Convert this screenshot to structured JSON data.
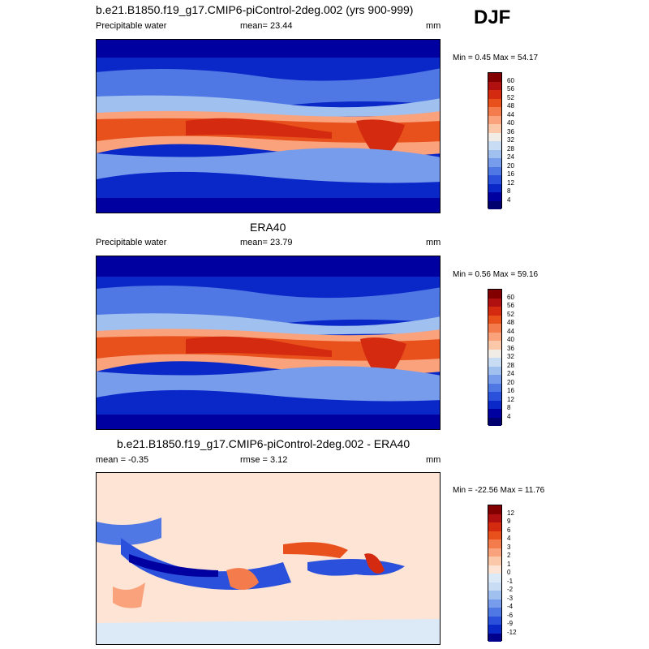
{
  "season": "DJF",
  "panels": [
    {
      "title": "b.e21.B1850.f19_g17.CMIP6-piControl-2deg.002 (yrs 900-999)",
      "left": "Precipitable water",
      "center": "mean=  23.44",
      "right": "mm",
      "minmax": "Min =  0.45 Max =  54.17",
      "cbar_labels": [
        "60",
        "56",
        "52",
        "48",
        "44",
        "40",
        "36",
        "32",
        "28",
        "24",
        "20",
        "16",
        "12",
        "8",
        "4"
      ]
    },
    {
      "title": "ERA40",
      "left": "Precipitable water",
      "center": "mean=  23.79",
      "right": "mm",
      "minmax": "Min =  0.56 Max =  59.16",
      "cbar_labels": [
        "60",
        "56",
        "52",
        "48",
        "44",
        "40",
        "36",
        "32",
        "28",
        "24",
        "20",
        "16",
        "12",
        "8",
        "4"
      ]
    },
    {
      "title": "b.e21.B1850.f19_g17.CMIP6-piControl-2deg.002 - ERA40",
      "left": "mean =  -0.35",
      "center": "rmse =   3.12",
      "right": "mm",
      "minmax": "Min = -22.56 Max =  11.76",
      "cbar_labels": [
        "12",
        "9",
        "6",
        "4",
        "3",
        "2",
        "1",
        "0",
        "-1",
        "-2",
        "-3",
        "-4",
        "-6",
        "-9",
        "-12"
      ]
    }
  ],
  "colors": {
    "field": [
      "#820000",
      "#b01010",
      "#d42a10",
      "#e8501c",
      "#f47c4c",
      "#f9a27c",
      "#fcc8aa",
      "#f2ece6",
      "#c8dcf4",
      "#a0c0f0",
      "#789cec",
      "#5078e4",
      "#2a50dc",
      "#0a28c8",
      "#0000a0",
      "#00006e"
    ],
    "diff": [
      "#820000",
      "#b01010",
      "#d42a10",
      "#e8501c",
      "#f47c4c",
      "#f9a27c",
      "#fcc8aa",
      "#fde4d4",
      "#dceaf8",
      "#c8dcf4",
      "#a0c0f0",
      "#789cec",
      "#5078e4",
      "#2a50dc",
      "#0a28c8",
      "#00008c"
    ]
  }
}
